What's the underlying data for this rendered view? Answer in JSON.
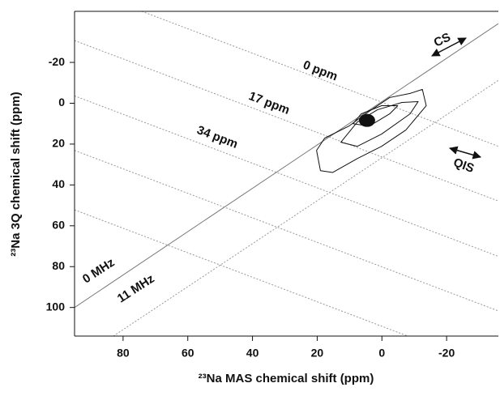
{
  "chart_data": {
    "type": "contour",
    "xlabel": "²³Na MAS chemical shift (ppm)",
    "ylabel": "²³Na 3Q chemical shift (ppm)",
    "xlim": [
      95,
      -36
    ],
    "ylim": [
      -45,
      114
    ],
    "xticks": [
      80,
      60,
      40,
      20,
      0,
      -20
    ],
    "yticks": [
      -20,
      0,
      20,
      40,
      60,
      80,
      100
    ],
    "color": "#111111",
    "lines": [
      {
        "label": "0 MHz",
        "x": [
          95,
          -36
        ],
        "y": [
          100,
          -39
        ],
        "style": "solid"
      },
      {
        "label": "11 MHz",
        "x": [
          83,
          -36
        ],
        "y": [
          114,
          -11.2
        ],
        "style": "dotted"
      },
      {
        "label": "0 ppm",
        "x": [
          74.2,
          -36
        ],
        "y": [
          -45,
          21.1
        ],
        "style": "dotted"
      },
      {
        "label": "17 ppm",
        "x": [
          95,
          -36
        ],
        "y": [
          -30.7,
          47.9
        ],
        "style": "dotted"
      },
      {
        "label": "34 ppm",
        "x": [
          95,
          -36
        ],
        "y": [
          -3.6,
          75
        ],
        "style": "dotted"
      },
      {
        "x": [
          95,
          -36
        ],
        "y": [
          23.1,
          101.7
        ],
        "style": "dotted"
      },
      {
        "x": [
          95,
          -36
        ],
        "y": [
          52.2,
          130.8
        ],
        "style": "dotted"
      }
    ],
    "contours": [
      {
        "x": [
          20.2,
          19,
          15.2,
          7.6,
          0.1,
          -7.4,
          -13.7,
          -12.5,
          -8.7,
          -2.4,
          5.1,
          10.2,
          17.7
        ],
        "y": [
          23.1,
          33,
          33.9,
          27.1,
          21.1,
          13.1,
          1.2,
          -6.8,
          -4.8,
          -2.8,
          5.2,
          11.2,
          17.1
        ]
      },
      {
        "x": [
          12.7,
          7.6,
          0.1,
          -8.7,
          -11.2,
          -6.2,
          1.4,
          7.6
        ],
        "y": [
          19.1,
          21.1,
          15.1,
          5.2,
          -0.8,
          -0.4,
          3.2,
          9.2
        ]
      },
      {
        "x": [
          8.9,
          3.9,
          -2.4,
          -4.9,
          0.1,
          6.4
        ],
        "y": [
          10,
          11.2,
          5.2,
          1.2,
          1.2,
          5.2
        ]
      }
    ],
    "peak": {
      "x": 4.6,
      "y": 8.4
    },
    "annotations": [
      "CS",
      "QIS"
    ]
  }
}
